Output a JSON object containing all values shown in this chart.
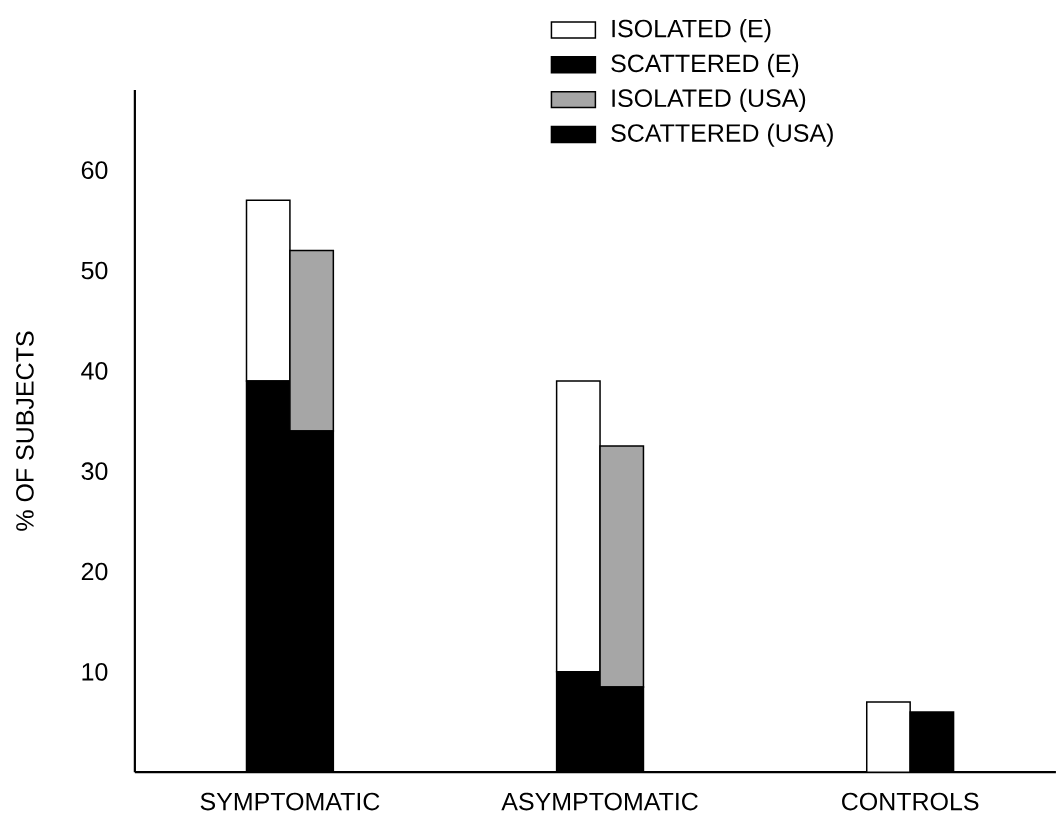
{
  "chart_data": {
    "type": "bar",
    "ylabel": "% OF SUBJECTS",
    "categories": [
      "SYMPTOMATIC",
      "ASYMPTOMATIC",
      "CONTROLS"
    ],
    "series": [
      {
        "name": "ISOLATED (E)",
        "color": "#ffffff",
        "values": [
          18,
          29,
          7
        ],
        "base": [
          39,
          10,
          0
        ]
      },
      {
        "name": "SCATTERED (E)",
        "color": "#000000",
        "values": [
          39,
          10,
          null
        ]
      },
      {
        "name": "ISOLATED (USA)",
        "color": "#a6a6a6",
        "values": [
          18,
          24,
          null
        ],
        "base": [
          34,
          8.5,
          null
        ]
      },
      {
        "name": "SCATTERED (USA)",
        "color": "#000000",
        "values": [
          34,
          8.5,
          6
        ]
      }
    ],
    "ylim": [
      0,
      68
    ],
    "yticks": [
      10,
      20,
      30,
      40,
      50,
      60
    ],
    "legend": "top right"
  }
}
